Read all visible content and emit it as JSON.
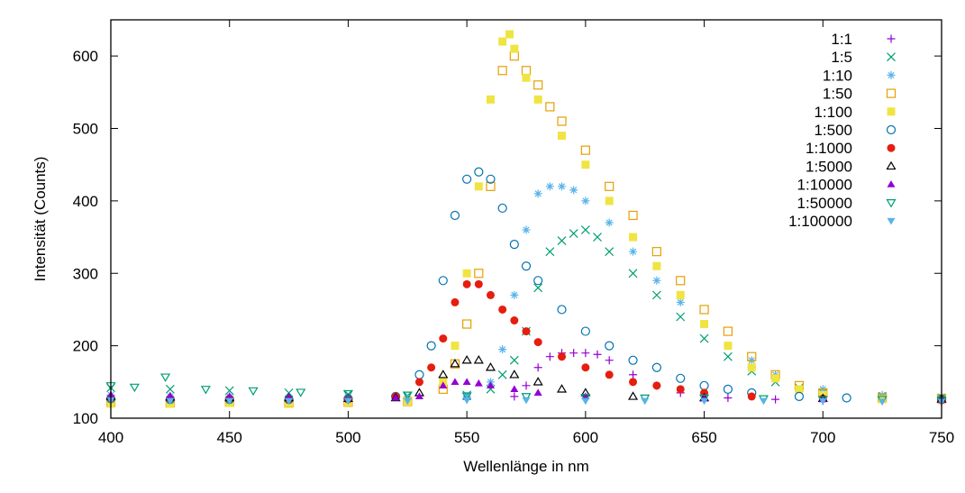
{
  "chart_data": {
    "type": "scatter",
    "title": "",
    "xlabel": "Wellenlänge in nm",
    "ylabel": "Intensität (Counts)",
    "xlim": [
      400,
      750
    ],
    "ylim": [
      100,
      650
    ],
    "xticks": [
      400,
      450,
      500,
      550,
      600,
      650,
      700,
      750
    ],
    "yticks": [
      100,
      200,
      300,
      400,
      500,
      600
    ],
    "grid": false,
    "legend": "top-right",
    "series": [
      {
        "name": "1:1",
        "marker": "plus",
        "color": "#9400d3",
        "x": [
          400,
          425,
          450,
          475,
          500,
          525,
          550,
          570,
          575,
          580,
          585,
          590,
          595,
          600,
          605,
          610,
          620,
          630,
          640,
          660,
          680,
          700,
          725,
          750
        ],
        "y": [
          125,
          124,
          125,
          124,
          124,
          125,
          126,
          130,
          145,
          170,
          185,
          190,
          190,
          190,
          188,
          180,
          160,
          145,
          135,
          128,
          126,
          124,
          124,
          122
        ]
      },
      {
        "name": "1:5",
        "marker": "x",
        "color": "#009e73",
        "x": [
          400,
          425,
          450,
          475,
          500,
          525,
          550,
          560,
          565,
          570,
          575,
          580,
          585,
          590,
          595,
          600,
          605,
          610,
          620,
          630,
          640,
          650,
          660,
          670,
          680,
          690,
          700,
          725,
          750
        ],
        "y": [
          142,
          140,
          138,
          135,
          133,
          131,
          132,
          140,
          160,
          180,
          220,
          280,
          330,
          345,
          355,
          360,
          350,
          330,
          300,
          270,
          240,
          210,
          185,
          165,
          150,
          142,
          135,
          130,
          128
        ]
      },
      {
        "name": "1:10",
        "marker": "star",
        "color": "#56b4e9",
        "x": [
          400,
          425,
          450,
          475,
          500,
          525,
          550,
          560,
          565,
          570,
          575,
          580,
          585,
          590,
          595,
          600,
          610,
          620,
          630,
          640,
          650,
          660,
          670,
          680,
          700,
          725,
          750
        ],
        "y": [
          132,
          130,
          130,
          128,
          128,
          127,
          130,
          150,
          195,
          270,
          360,
          410,
          420,
          420,
          415,
          400,
          370,
          330,
          290,
          260,
          230,
          200,
          180,
          160,
          140,
          132,
          130
        ]
      },
      {
        "name": "1:50",
        "marker": "square-open",
        "color": "#e69f00",
        "x": [
          400,
          425,
          450,
          475,
          500,
          525,
          540,
          545,
          550,
          555,
          560,
          565,
          570,
          575,
          580,
          585,
          590,
          600,
          610,
          620,
          630,
          640,
          650,
          660,
          670,
          680,
          690,
          700,
          725,
          750
        ],
        "y": [
          122,
          121,
          122,
          121,
          122,
          123,
          140,
          175,
          230,
          300,
          420,
          580,
          600,
          580,
          560,
          530,
          510,
          470,
          420,
          380,
          330,
          290,
          250,
          220,
          185,
          160,
          145,
          135,
          128,
          127
        ]
      },
      {
        "name": "1:100",
        "marker": "square",
        "color": "#f0e442",
        "x": [
          400,
          425,
          450,
          475,
          500,
          525,
          540,
          545,
          550,
          555,
          560,
          565,
          568,
          570,
          575,
          580,
          590,
          600,
          610,
          620,
          630,
          640,
          650,
          660,
          670,
          680,
          690,
          700,
          725,
          750
        ],
        "y": [
          120,
          120,
          121,
          121,
          122,
          123,
          150,
          200,
          300,
          420,
          540,
          620,
          630,
          610,
          570,
          540,
          490,
          450,
          400,
          350,
          310,
          270,
          230,
          200,
          170,
          155,
          140,
          132,
          126,
          125
        ]
      },
      {
        "name": "1:500",
        "marker": "circle-open",
        "color": "#0072b2",
        "x": [
          400,
          425,
          450,
          475,
          500,
          520,
          530,
          535,
          540,
          545,
          550,
          555,
          560,
          565,
          570,
          575,
          580,
          590,
          600,
          610,
          620,
          630,
          640,
          650,
          660,
          670,
          690,
          710,
          750
        ],
        "y": [
          127,
          126,
          126,
          126,
          127,
          130,
          160,
          200,
          290,
          380,
          430,
          440,
          430,
          390,
          340,
          310,
          290,
          250,
          220,
          200,
          180,
          170,
          155,
          145,
          140,
          135,
          130,
          128,
          126
        ]
      },
      {
        "name": "1:1000",
        "marker": "circle",
        "color": "#e51e10",
        "x": [
          400,
          425,
          450,
          475,
          500,
          520,
          530,
          535,
          540,
          545,
          550,
          555,
          560,
          565,
          570,
          575,
          580,
          590,
          600,
          610,
          620,
          630,
          640,
          650,
          670,
          700,
          750
        ],
        "y": [
          128,
          127,
          127,
          126,
          126,
          130,
          150,
          170,
          210,
          260,
          285,
          285,
          270,
          250,
          235,
          220,
          205,
          185,
          170,
          160,
          150,
          145,
          140,
          135,
          130,
          127,
          125
        ]
      },
      {
        "name": "1:5000",
        "marker": "triangle-open",
        "color": "#000000",
        "x": [
          400,
          425,
          450,
          475,
          500,
          520,
          530,
          540,
          545,
          550,
          555,
          560,
          570,
          580,
          590,
          600,
          620,
          650,
          700,
          750
        ],
        "y": [
          130,
          129,
          128,
          128,
          127,
          128,
          135,
          160,
          175,
          180,
          180,
          170,
          160,
          150,
          140,
          135,
          130,
          128,
          127,
          126
        ]
      },
      {
        "name": "1:10000",
        "marker": "triangle",
        "color": "#9400d3",
        "x": [
          400,
          425,
          450,
          475,
          500,
          520,
          530,
          540,
          545,
          550,
          555,
          560,
          570,
          580,
          600,
          650,
          700,
          750
        ],
        "y": [
          132,
          131,
          130,
          129,
          128,
          128,
          130,
          145,
          150,
          150,
          148,
          145,
          140,
          135,
          130,
          127,
          126,
          125
        ]
      },
      {
        "name": "1:50000",
        "marker": "triangle-down-open",
        "color": "#009e73",
        "x": [
          400,
          410,
          423,
          440,
          460,
          480,
          500,
          525,
          550,
          575,
          600,
          625,
          650,
          675,
          700,
          725,
          750
        ],
        "y": [
          145,
          143,
          157,
          140,
          138,
          136,
          134,
          132,
          131,
          130,
          129,
          128,
          128,
          127,
          126,
          126,
          125
        ]
      },
      {
        "name": "1:100000",
        "marker": "triangle-down",
        "color": "#56b4e9",
        "x": [
          400,
          425,
          450,
          475,
          500,
          525,
          550,
          575,
          600,
          625,
          650,
          675,
          700,
          725,
          750
        ],
        "y": [
          125,
          124,
          124,
          124,
          124,
          124,
          125,
          125,
          124,
          124,
          124,
          124,
          124,
          123,
          123
        ]
      }
    ]
  }
}
